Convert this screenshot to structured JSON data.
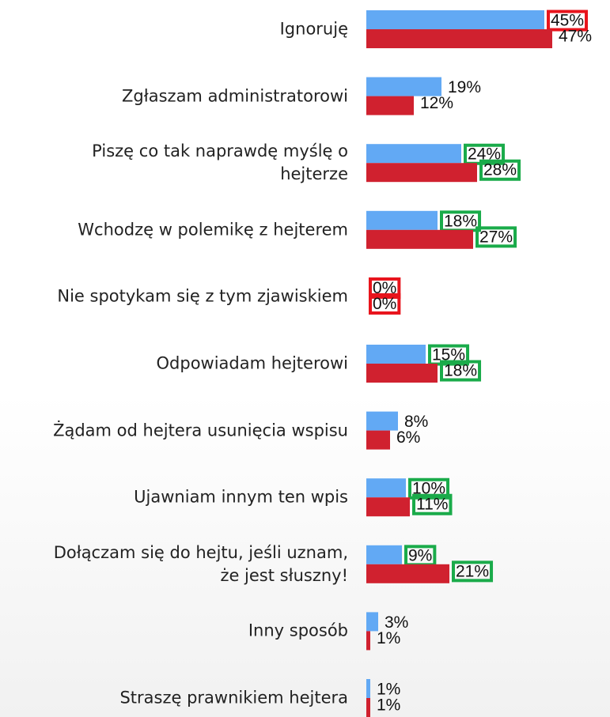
{
  "chart_data": {
    "type": "bar",
    "orientation": "horizontal",
    "categories": [
      "Ignoruję",
      "Zgłaszam administratorowi",
      "Piszę co tak naprawdę myślę o hejterze",
      "Wchodzę w polemikę z hejterem",
      "Nie spotykam się z tym zjawiskiem",
      "Odpowiadam hejterowi",
      "Żądam od hejtera usunięcia wspisu",
      "Ujawniam innym ten wpis",
      "Dołączam się do hejtu, jeśli uznam, że jest słuszny!",
      "Inny sposób",
      "Straszę prawnikiem hejtera"
    ],
    "series": [
      {
        "color": "#62a9f4",
        "values": [
          45,
          19,
          24,
          18,
          0,
          15,
          8,
          10,
          9,
          3,
          1
        ],
        "value_labels": [
          "45%",
          "19%",
          "24%",
          "18%",
          "0%",
          "15%",
          "8%",
          "10%",
          "9%",
          "3%",
          "1%"
        ]
      },
      {
        "color": "#d0212f",
        "values": [
          47,
          12,
          28,
          27,
          0,
          18,
          6,
          11,
          21,
          1,
          1
        ],
        "value_labels": [
          "47%",
          "12%",
          "28%",
          "27%",
          "0%",
          "18%",
          "6%",
          "11%",
          "21%",
          "1%",
          "1%"
        ]
      }
    ]
  }
}
